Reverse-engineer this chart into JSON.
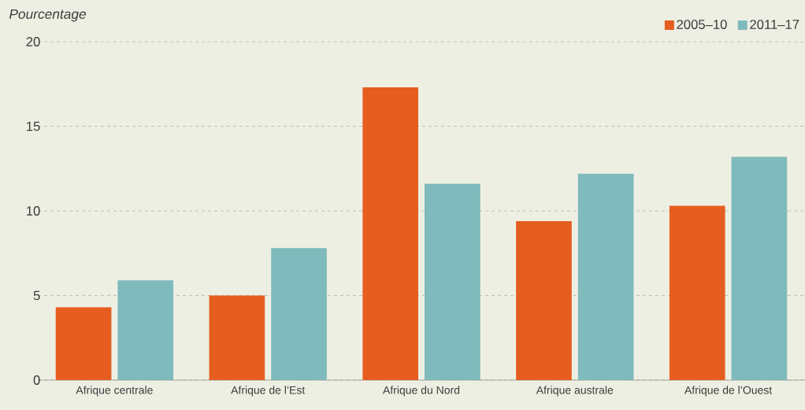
{
  "chart_data": {
    "type": "bar",
    "ylabel": "Pourcentage",
    "categories": [
      "Afrique centrale",
      "Afrique de l’Est",
      "Afrique du Nord",
      "Afrique australe",
      "Afrique de l’Ouest"
    ],
    "series": [
      {
        "name": "2005–10",
        "color": "#e55e20",
        "values": [
          4.3,
          5.0,
          17.3,
          9.4,
          10.3
        ]
      },
      {
        "name": "2011–17",
        "color": "#7fbabd",
        "values": [
          5.9,
          7.8,
          11.6,
          12.2,
          13.2
        ]
      }
    ],
    "ylim": [
      0,
      20
    ],
    "yticks": [
      0,
      5,
      10,
      15,
      20
    ],
    "grid": "y",
    "legend": "top right"
  }
}
